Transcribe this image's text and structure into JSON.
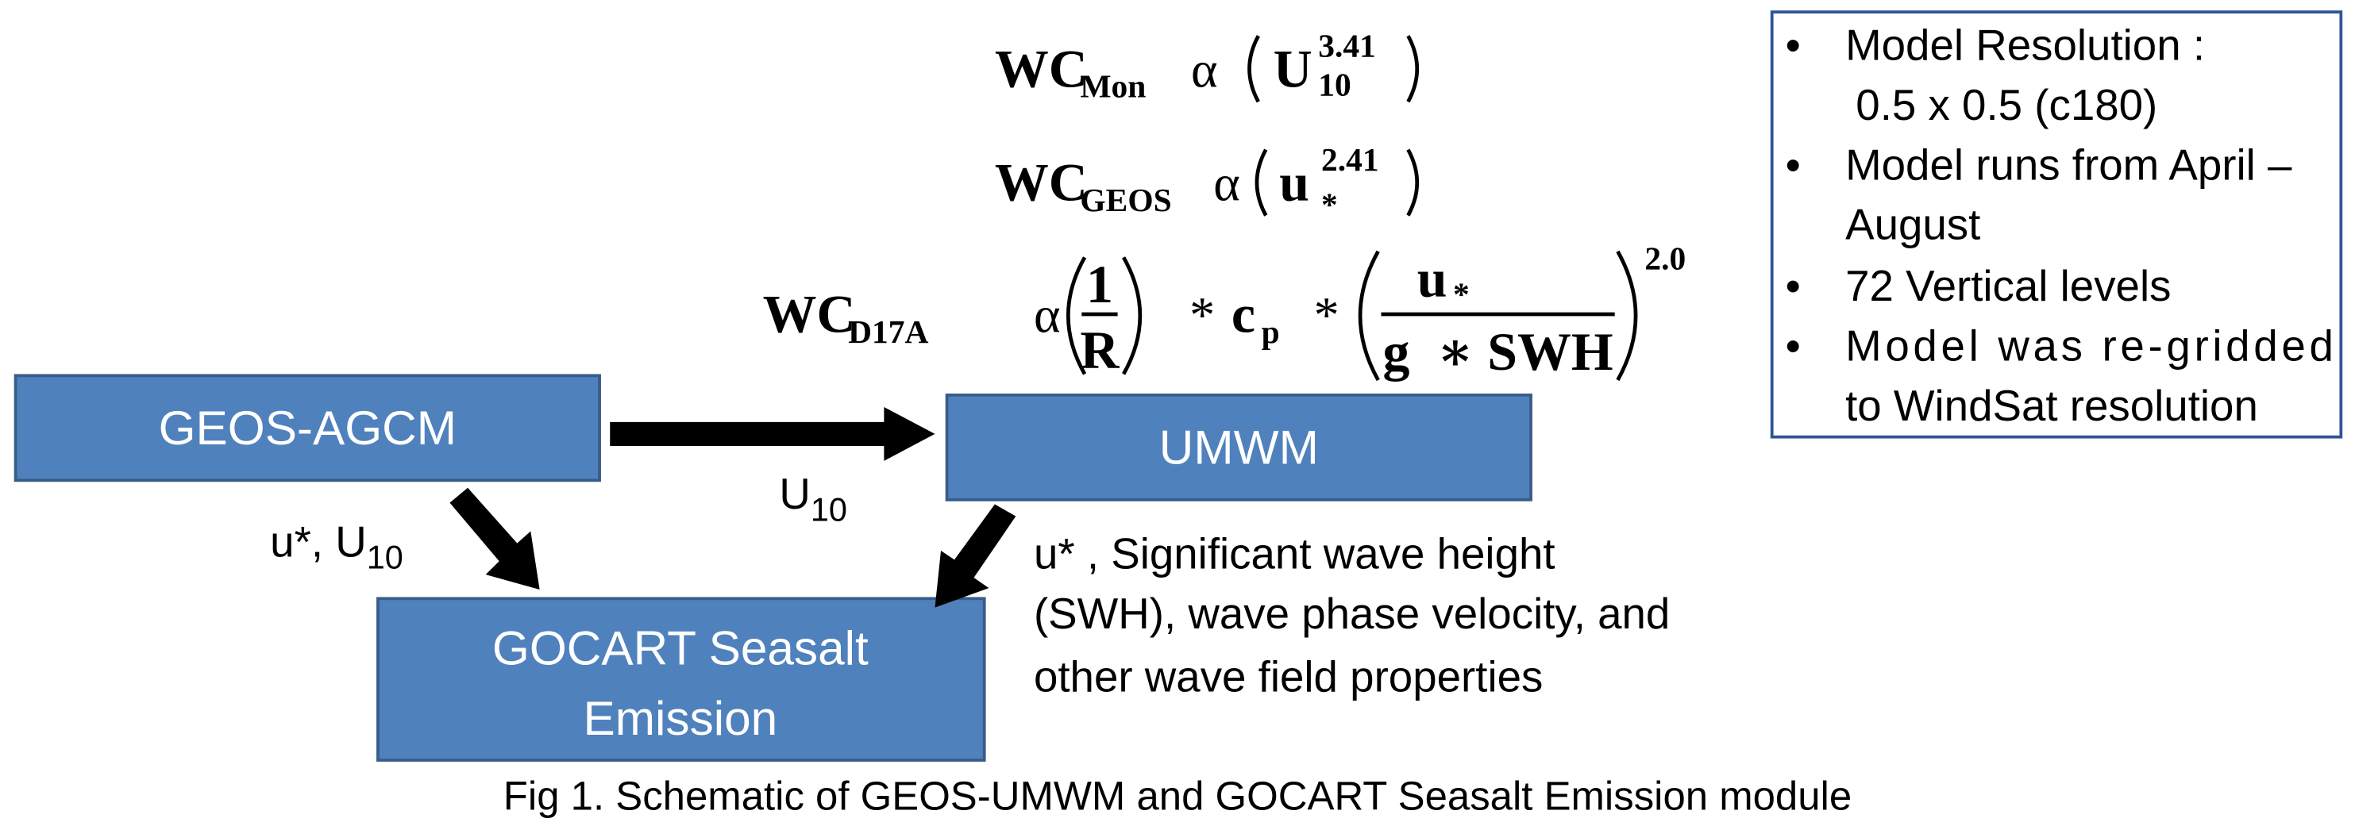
{
  "equations": [
    {
      "symbol": "WC",
      "subscript": "Mon",
      "relation": "α",
      "base": "U",
      "base_subscript": "10",
      "exponent": "3.41"
    },
    {
      "symbol": "WC",
      "subscript": "GEOS",
      "relation": "α",
      "base": "u",
      "base_subscript": "*",
      "exponent": "2.41"
    },
    {
      "symbol": "WC",
      "subscript": "D17A",
      "relation": "α",
      "numerator_1": "1",
      "denominator_1": "R",
      "operator_1": "*",
      "factor": "c",
      "factor_subscript": "p",
      "operator_2": "*",
      "numerator_2": "u",
      "numerator_2_subscript": "*",
      "denominator_2": "g  ∗ SWH",
      "exponent": "2.0"
    }
  ],
  "nodes": [
    {
      "label": "GEOS-AGCM"
    },
    {
      "label": "UMWM"
    },
    {
      "lines": [
        "GOCART Seasalt",
        "Emission"
      ]
    }
  ],
  "edges": [
    {
      "label": "U",
      "label_subscript": "10"
    },
    {
      "label": "u*, U",
      "label_subscript": "10"
    },
    {
      "lines": [
        "u* , Significant wave height",
        "(SWH), wave phase velocity, and",
        "other wave field properties"
      ]
    }
  ],
  "notes": [
    [
      "Model Resolution :",
      "0.5 x 0.5 (c180)"
    ],
    [
      "Model runs from April –",
      "August"
    ],
    [
      "72 Vertical levels"
    ],
    [
      "Model was re-gridded",
      "to WindSat resolution"
    ]
  ],
  "caption": "Fig 1. Schematic of GEOS-UMWM and GOCART Seasalt Emission module"
}
